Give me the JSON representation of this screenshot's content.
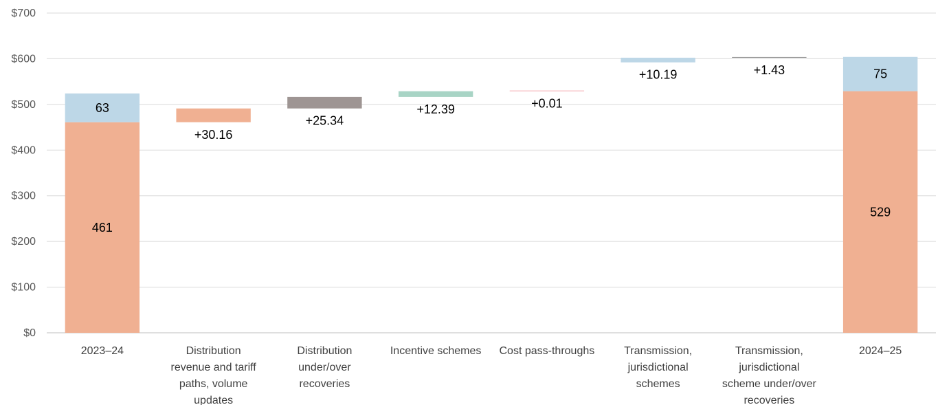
{
  "chart_data": {
    "type": "bar",
    "subtype": "waterfall",
    "title": "",
    "xlabel": "",
    "ylabel": "",
    "ylim": [
      0,
      700
    ],
    "y_ticks": [
      0,
      100,
      200,
      300,
      400,
      500,
      600,
      700
    ],
    "y_tick_labels": [
      "$0",
      "$100",
      "$200",
      "$300",
      "$400",
      "$500",
      "$600",
      "$700"
    ],
    "grid": true,
    "legend": "none",
    "categories": [
      [
        "2023–24"
      ],
      [
        "Distribution",
        "revenue and tariff",
        "paths, volume",
        "updates"
      ],
      [
        "Distribution",
        "under/over",
        "recoveries"
      ],
      [
        "Incentive schemes"
      ],
      [
        "Cost pass-throughs"
      ],
      [
        "Transmission,",
        "jurisdictional",
        "schemes"
      ],
      [
        "Transmission,",
        "jurisdictional",
        "scheme under/over",
        "recoveries"
      ],
      [
        "2024–25"
      ]
    ],
    "totals": [
      {
        "category_index": 0,
        "segments": [
          {
            "value": 461,
            "label": "461",
            "color": "#f0b092"
          },
          {
            "value": 63,
            "label": "63",
            "color": "#bdd7e7"
          }
        ]
      },
      {
        "category_index": 7,
        "segments": [
          {
            "value": 529,
            "label": "529",
            "color": "#f0b092"
          },
          {
            "value": 75,
            "label": "75",
            "color": "#bdd7e7"
          }
        ]
      }
    ],
    "changes": [
      {
        "category_index": 1,
        "start": 461,
        "delta": 30.16,
        "label": "+30.16",
        "color": "#f0b092"
      },
      {
        "category_index": 2,
        "start": 491.16,
        "delta": 25.34,
        "label": "+25.34",
        "color": "#9e9593"
      },
      {
        "category_index": 3,
        "start": 516.5,
        "delta": 12.39,
        "label": "+12.39",
        "color": "#a8d4c5"
      },
      {
        "category_index": 4,
        "start": 528.89,
        "delta": 0.01,
        "label": "+0.01",
        "color": "#f4a7b0"
      },
      {
        "category_index": 5,
        "start": 592.07,
        "delta": 10.19,
        "label": "+10.19",
        "color": "#bdd7e7"
      },
      {
        "category_index": 6,
        "start": 602.26,
        "delta": 1.43,
        "label": "+1.43",
        "color": "#8a8a8a"
      }
    ]
  }
}
